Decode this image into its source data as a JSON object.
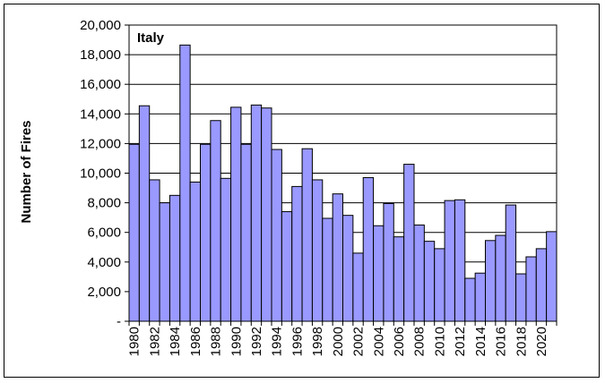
{
  "chart_data": {
    "type": "bar",
    "title": "Italy",
    "ylabel": "Number of Fires",
    "xlabel": "",
    "ylim": [
      0,
      20000
    ],
    "yticks": [
      0,
      2000,
      4000,
      6000,
      8000,
      10000,
      12000,
      14000,
      16000,
      18000,
      20000
    ],
    "ytick_labels": [
      "-",
      "2,000",
      "4,000",
      "6,000",
      "8,000",
      "10,000",
      "12,000",
      "14,000",
      "16,000",
      "18,000",
      "20,000"
    ],
    "grid": true,
    "bar_color": "#9999ff",
    "categories": [
      "1980",
      "1981",
      "1982",
      "1983",
      "1984",
      "1985",
      "1986",
      "1987",
      "1988",
      "1989",
      "1990",
      "1991",
      "1992",
      "1993",
      "1994",
      "1995",
      "1996",
      "1997",
      "1998",
      "1999",
      "2000",
      "2001",
      "2002",
      "2003",
      "2004",
      "2005",
      "2006",
      "2007",
      "2008",
      "2009",
      "2010",
      "2011",
      "2012",
      "2013",
      "2014",
      "2015",
      "2016",
      "2017",
      "2018",
      "2019",
      "2020",
      "2021"
    ],
    "xtick_labels": [
      "1980",
      "",
      "1982",
      "",
      "1984",
      "",
      "1986",
      "",
      "1988",
      "",
      "1990",
      "",
      "1992",
      "",
      "1994",
      "",
      "1996",
      "",
      "1998",
      "",
      "2000",
      "",
      "2002",
      "",
      "2004",
      "",
      "2006",
      "",
      "2008",
      "",
      "2010",
      "",
      "2012",
      "",
      "2014",
      "",
      "2016",
      "",
      "2018",
      "",
      "2020",
      ""
    ],
    "values": [
      11950,
      14550,
      9550,
      8000,
      8500,
      18650,
      9400,
      11950,
      13550,
      9650,
      14450,
      11950,
      14600,
      14400,
      11600,
      7400,
      9100,
      11650,
      9550,
      6950,
      8600,
      7150,
      4600,
      9700,
      6450,
      7950,
      5700,
      10600,
      6500,
      5400,
      4900,
      8150,
      8200,
      2900,
      3250,
      5450,
      5800,
      7850,
      3200,
      4350,
      4900,
      6050
    ]
  }
}
